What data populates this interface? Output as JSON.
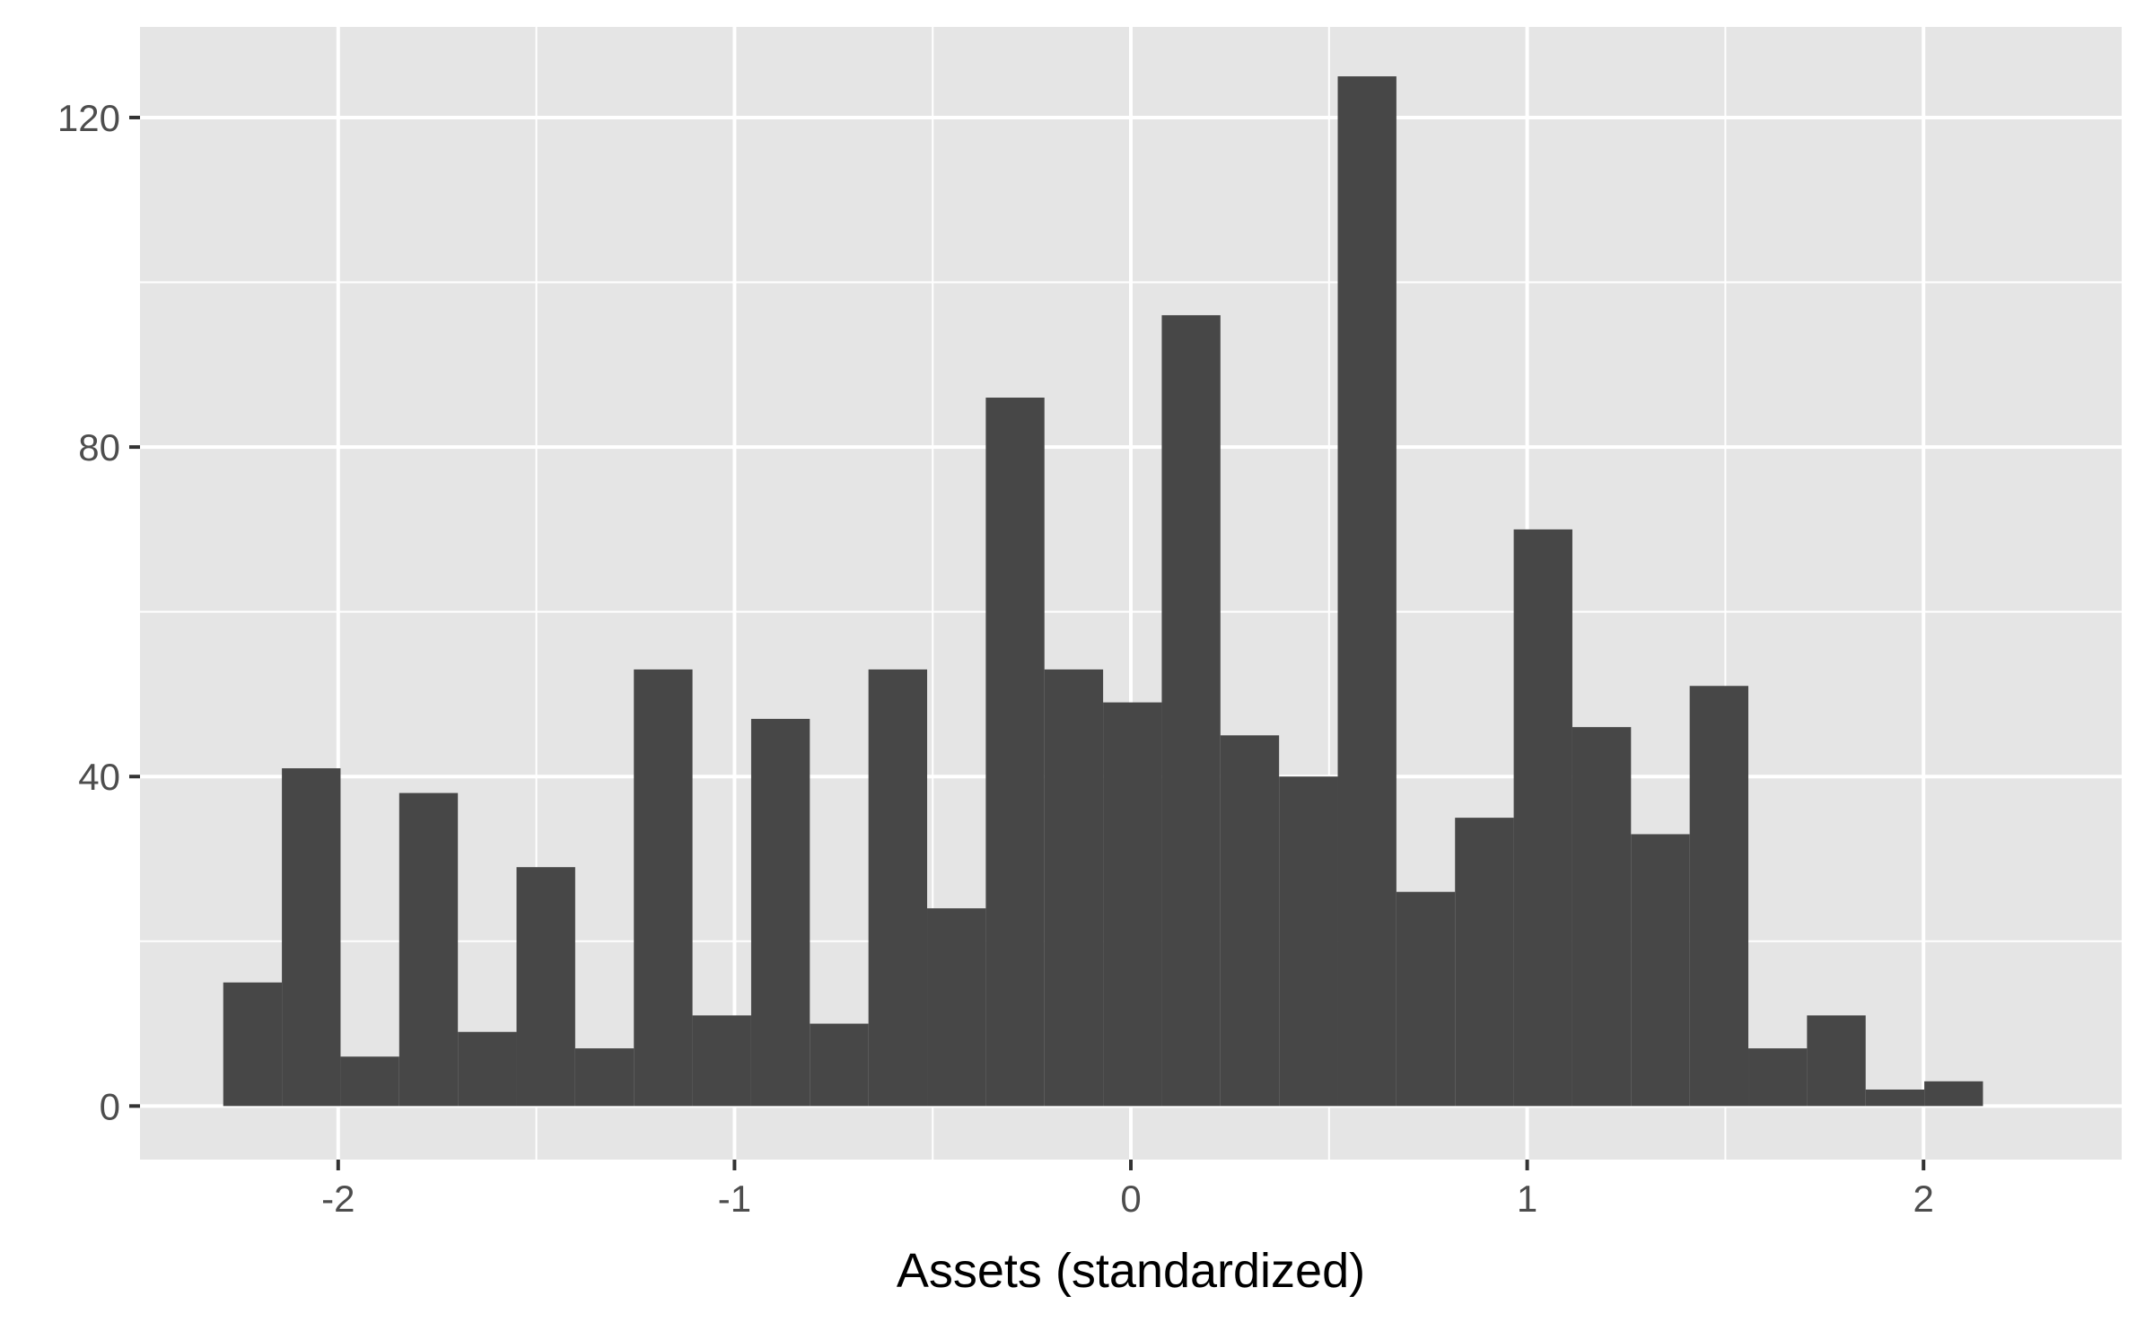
{
  "chart_data": {
    "type": "bar",
    "subtype": "histogram",
    "title": "",
    "xlabel": "Assets (standardized)",
    "ylabel": "",
    "xlim": [
      -2.5,
      2.5
    ],
    "ylim": [
      -6.5,
      131
    ],
    "x_ticks": [
      -2,
      -1,
      0,
      1,
      2
    ],
    "x_tick_labels": [
      "-2",
      "-1",
      "0",
      "1",
      "2"
    ],
    "y_ticks": [
      0,
      40,
      80,
      120
    ],
    "y_tick_labels": [
      "0",
      "40",
      "80",
      "120"
    ],
    "x_minor_ticks": [
      -1.5,
      -0.5,
      0.5,
      1.5
    ],
    "y_minor_ticks": [
      20,
      60,
      100
    ],
    "grid": true,
    "legend": "none",
    "bin_width": 0.148,
    "bins": [
      {
        "start": -2.29,
        "end": -2.142,
        "count": 15
      },
      {
        "start": -2.142,
        "end": -1.994,
        "count": 41
      },
      {
        "start": -1.994,
        "end": -1.846,
        "count": 6
      },
      {
        "start": -1.846,
        "end": -1.698,
        "count": 38
      },
      {
        "start": -1.698,
        "end": -1.55,
        "count": 9
      },
      {
        "start": -1.55,
        "end": -1.402,
        "count": 29
      },
      {
        "start": -1.402,
        "end": -1.254,
        "count": 7
      },
      {
        "start": -1.254,
        "end": -1.106,
        "count": 53
      },
      {
        "start": -1.106,
        "end": -0.958,
        "count": 11
      },
      {
        "start": -0.958,
        "end": -0.81,
        "count": 47
      },
      {
        "start": -0.81,
        "end": -0.662,
        "count": 10
      },
      {
        "start": -0.662,
        "end": -0.514,
        "count": 53
      },
      {
        "start": -0.514,
        "end": -0.366,
        "count": 24
      },
      {
        "start": -0.366,
        "end": -0.218,
        "count": 86
      },
      {
        "start": -0.218,
        "end": -0.07,
        "count": 53
      },
      {
        "start": -0.07,
        "end": 0.078,
        "count": 49
      },
      {
        "start": 0.078,
        "end": 0.226,
        "count": 96
      },
      {
        "start": 0.226,
        "end": 0.374,
        "count": 45
      },
      {
        "start": 0.374,
        "end": 0.522,
        "count": 40
      },
      {
        "start": 0.522,
        "end": 0.67,
        "count": 125
      },
      {
        "start": 0.67,
        "end": 0.818,
        "count": 26
      },
      {
        "start": 0.818,
        "end": 0.966,
        "count": 35
      },
      {
        "start": 0.966,
        "end": 1.114,
        "count": 70
      },
      {
        "start": 1.114,
        "end": 1.262,
        "count": 46
      },
      {
        "start": 1.262,
        "end": 1.41,
        "count": 33
      },
      {
        "start": 1.41,
        "end": 1.558,
        "count": 51
      },
      {
        "start": 1.558,
        "end": 1.706,
        "count": 7
      },
      {
        "start": 1.706,
        "end": 1.854,
        "count": 11
      },
      {
        "start": 1.854,
        "end": 2.002,
        "count": 2
      },
      {
        "start": 2.002,
        "end": 2.15,
        "count": 3
      }
    ],
    "colors": {
      "panel_background": "#e5e5e5",
      "grid": "#ffffff",
      "bar_fill": "#474747",
      "tick_mark": "#333333",
      "tick_label": "#4d4d4d",
      "axis_title": "#000000"
    }
  }
}
